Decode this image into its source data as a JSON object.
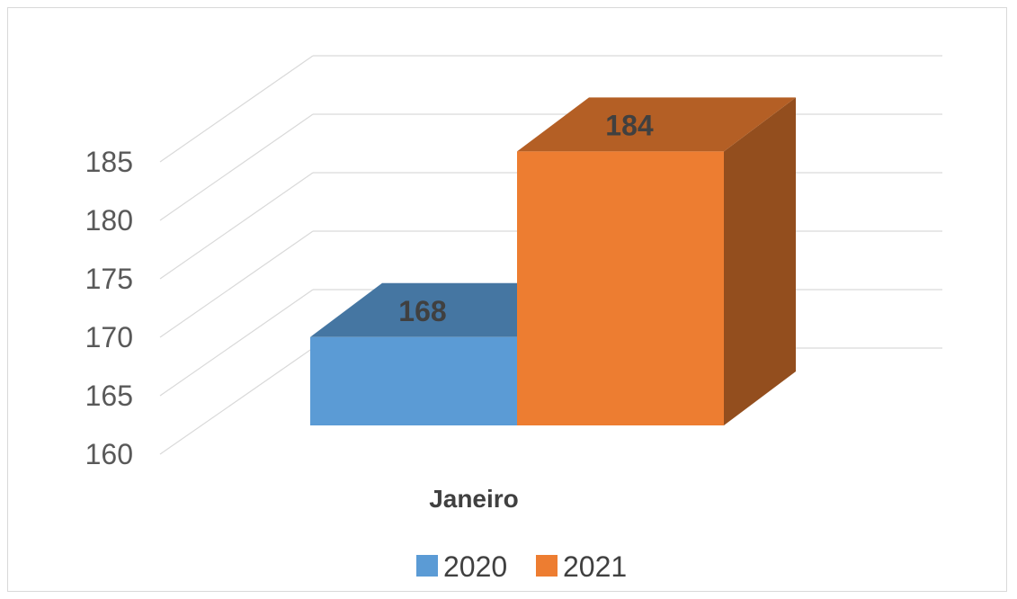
{
  "chart_data": {
    "type": "bar",
    "categories": [
      "Janeiro"
    ],
    "series": [
      {
        "name": "2020",
        "values": [
          168
        ],
        "color": "#5b9bd5"
      },
      {
        "name": "2021",
        "values": [
          184
        ],
        "color": "#ed7d31"
      }
    ],
    "yticks": [
      160,
      165,
      170,
      175,
      180,
      185
    ],
    "ylim": [
      160,
      185
    ],
    "grid": true,
    "legend_position": "bottom",
    "data_labels": true,
    "style": "3d"
  }
}
